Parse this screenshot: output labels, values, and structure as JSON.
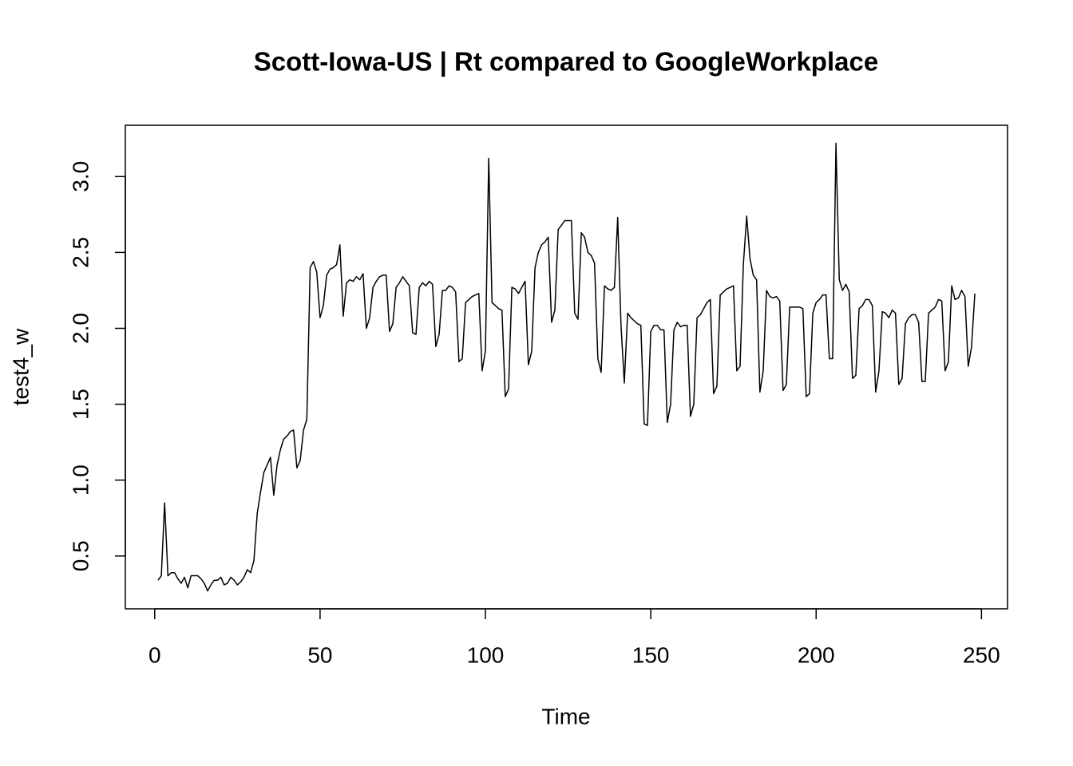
{
  "chart_data": {
    "type": "line",
    "title": "Scott-Iowa-US | Rt compared to GoogleWorkplace",
    "xlabel": "Time",
    "ylabel": "test4_w",
    "color": "#000000",
    "x": [
      1,
      2,
      3,
      4,
      5,
      6,
      7,
      8,
      9,
      10,
      11,
      12,
      13,
      14,
      15,
      16,
      17,
      18,
      19,
      20,
      21,
      22,
      23,
      24,
      25,
      26,
      27,
      28,
      29,
      30,
      31,
      32,
      33,
      34,
      35,
      36,
      37,
      38,
      39,
      40,
      41,
      42,
      43,
      44,
      45,
      46,
      47,
      48,
      49,
      50,
      51,
      52,
      53,
      54,
      55,
      56,
      57,
      58,
      59,
      60,
      61,
      62,
      63,
      64,
      65,
      66,
      67,
      68,
      69,
      70,
      71,
      72,
      73,
      74,
      75,
      76,
      77,
      78,
      79,
      80,
      81,
      82,
      83,
      84,
      85,
      86,
      87,
      88,
      89,
      90,
      91,
      92,
      93,
      94,
      95,
      96,
      97,
      98,
      99,
      100,
      101,
      102,
      103,
      104,
      105,
      106,
      107,
      108,
      109,
      110,
      111,
      112,
      113,
      114,
      115,
      116,
      117,
      118,
      119,
      120,
      121,
      122,
      123,
      124,
      125,
      126,
      127,
      128,
      129,
      130,
      131,
      132,
      133,
      134,
      135,
      136,
      137,
      138,
      139,
      140,
      141,
      142,
      143,
      144,
      145,
      146,
      147,
      148,
      149,
      150,
      151,
      152,
      153,
      154,
      155,
      156,
      157,
      158,
      159,
      160,
      161,
      162,
      163,
      164,
      165,
      166,
      167,
      168,
      169,
      170,
      171,
      172,
      173,
      174,
      175,
      176,
      177,
      178,
      179,
      180,
      181,
      182,
      183,
      184,
      185,
      186,
      187,
      188,
      189,
      190,
      191,
      192,
      193,
      194,
      195,
      196,
      197,
      198,
      199,
      200,
      201,
      202,
      203,
      204,
      205,
      206,
      207,
      208,
      209,
      210,
      211,
      212,
      213,
      214,
      215,
      216,
      217,
      218,
      219,
      220,
      221,
      222,
      223,
      224,
      225,
      226,
      227,
      228,
      229,
      230,
      231,
      232,
      233,
      234,
      235,
      236,
      237,
      238,
      239,
      240,
      241,
      242,
      243,
      244,
      245,
      246,
      247,
      248
    ],
    "values": [
      0.34,
      0.37,
      0.85,
      0.37,
      0.39,
      0.39,
      0.35,
      0.32,
      0.36,
      0.29,
      0.37,
      0.37,
      0.37,
      0.35,
      0.32,
      0.27,
      0.31,
      0.34,
      0.34,
      0.36,
      0.31,
      0.32,
      0.36,
      0.34,
      0.31,
      0.33,
      0.36,
      0.41,
      0.39,
      0.47,
      0.78,
      0.92,
      1.05,
      1.1,
      1.15,
      0.9,
      1.1,
      1.2,
      1.27,
      1.29,
      1.32,
      1.33,
      1.08,
      1.13,
      1.33,
      1.4,
      2.4,
      2.44,
      2.37,
      2.07,
      2.15,
      2.35,
      2.39,
      2.4,
      2.42,
      2.55,
      2.08,
      2.3,
      2.32,
      2.31,
      2.34,
      2.32,
      2.36,
      2.0,
      2.07,
      2.27,
      2.31,
      2.34,
      2.35,
      2.35,
      1.98,
      2.03,
      2.27,
      2.3,
      2.34,
      2.31,
      2.28,
      1.97,
      1.96,
      2.27,
      2.3,
      2.28,
      2.31,
      2.29,
      1.88,
      1.96,
      2.25,
      2.25,
      2.28,
      2.27,
      2.24,
      1.78,
      1.8,
      2.17,
      2.19,
      2.21,
      2.22,
      2.23,
      1.72,
      1.85,
      3.12,
      2.17,
      2.15,
      2.13,
      2.12,
      1.55,
      1.6,
      2.27,
      2.26,
      2.23,
      2.27,
      2.31,
      1.76,
      1.85,
      2.4,
      2.5,
      2.55,
      2.57,
      2.6,
      2.04,
      2.12,
      2.65,
      2.68,
      2.71,
      2.71,
      2.71,
      2.1,
      2.06,
      2.63,
      2.6,
      2.5,
      2.48,
      2.43,
      1.8,
      1.71,
      2.28,
      2.26,
      2.25,
      2.27,
      2.73,
      2.02,
      1.64,
      2.1,
      2.07,
      2.05,
      2.03,
      2.02,
      1.37,
      1.36,
      1.98,
      2.02,
      2.02,
      1.99,
      1.99,
      1.38,
      1.5,
      1.99,
      2.04,
      2.01,
      2.02,
      2.02,
      1.42,
      1.5,
      2.07,
      2.09,
      2.13,
      2.17,
      2.19,
      1.57,
      1.62,
      2.22,
      2.24,
      2.26,
      2.27,
      2.28,
      1.72,
      1.75,
      2.42,
      2.74,
      2.46,
      2.35,
      2.32,
      1.58,
      1.72,
      2.25,
      2.21,
      2.2,
      2.21,
      2.18,
      1.59,
      1.63,
      2.14,
      2.14,
      2.14,
      2.14,
      2.13,
      1.55,
      1.57,
      2.1,
      2.17,
      2.19,
      2.22,
      2.22,
      1.8,
      1.8,
      3.22,
      2.32,
      2.25,
      2.29,
      2.24,
      1.67,
      1.69,
      2.13,
      2.15,
      2.19,
      2.19,
      2.15,
      1.58,
      1.72,
      2.11,
      2.1,
      2.07,
      2.12,
      2.1,
      1.63,
      1.67,
      2.03,
      2.07,
      2.09,
      2.09,
      2.04,
      1.65,
      1.65,
      2.1,
      2.12,
      2.14,
      2.19,
      2.18,
      1.72,
      1.78,
      2.28,
      2.19,
      2.2,
      2.25,
      2.21,
      1.75,
      1.88,
      2.23
    ],
    "xlim": [
      -8.88,
      257.88
    ],
    "ylim": [
      0.152,
      3.338
    ],
    "xticks": [
      0,
      50,
      100,
      150,
      200,
      250
    ],
    "yticks": [
      0.5,
      {
        "value": 1,
        "label": "1.0"
      },
      1.5,
      {
        "value": 2,
        "label": "2.0"
      },
      2.5,
      {
        "value": 3,
        "label": "3.0"
      }
    ]
  }
}
